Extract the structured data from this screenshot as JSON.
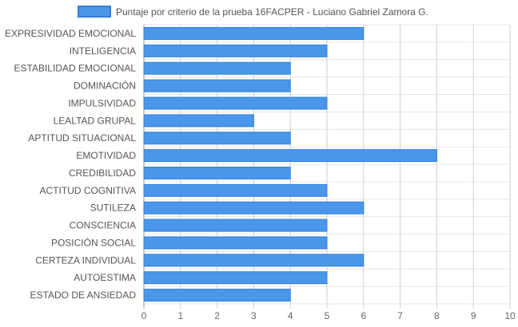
{
  "chart_data": {
    "type": "bar",
    "orientation": "horizontal",
    "categories": [
      "EXPRESIVIDAD EMOCIONAL",
      "INTELIGENCIA",
      "ESTABILIDAD EMOCIONAL",
      "DOMINACIÓN",
      "IMPULSIVIDAD",
      "LEALTAD GRUPAL",
      "APTITUD SITUACIONAL",
      "EMOTIVIDAD",
      "CREDIBILIDAD",
      "ACTITUD COGNITIVA",
      "SUTILEZA",
      "CONSCIENCIA",
      "POSICIÓN SOCIAL",
      "CERTEZA INDIVIDUAL",
      "AUTOESTIMA",
      "ESTADO DE ANSIEDAD"
    ],
    "series": [
      {
        "name": "Puntaje por criterio de la prueba 16FACPER - Luciano Gabriel Zamora G.",
        "values": [
          6,
          5,
          4,
          4,
          5,
          3,
          4,
          8,
          4,
          5,
          6,
          5,
          5,
          6,
          5,
          4
        ],
        "color": "#4a97ea",
        "border_color": "#2f7fe0"
      }
    ],
    "xlim": [
      0,
      10
    ],
    "x_ticks": [
      "0",
      "1",
      "2",
      "3",
      "4",
      "5",
      "6",
      "7",
      "8",
      "9",
      "10"
    ],
    "grid": true,
    "legend_position": "top-center"
  }
}
